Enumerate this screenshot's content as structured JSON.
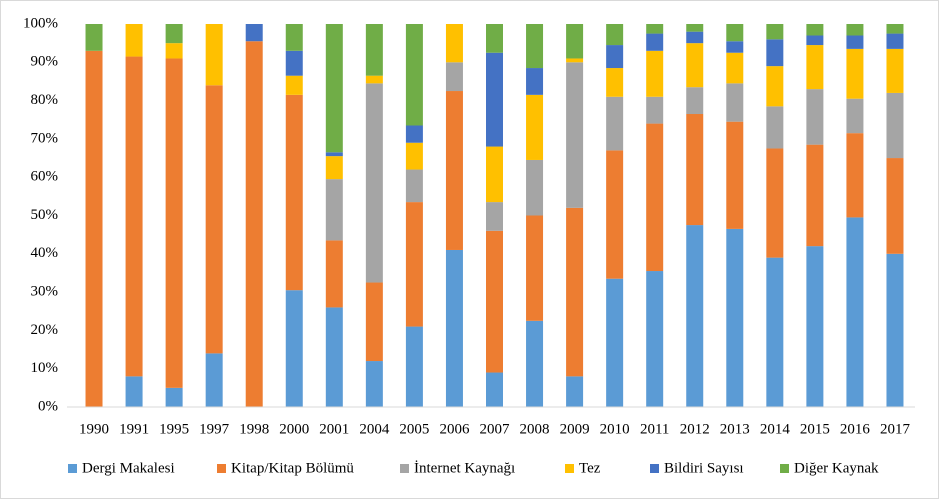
{
  "chart_data": {
    "type": "stacked_bar_100",
    "categories": [
      "1990",
      "1991",
      "1995",
      "1997",
      "1998",
      "2000",
      "2001",
      "2004",
      "2005",
      "2006",
      "2007",
      "2008",
      "2009",
      "2010",
      "2011",
      "2012",
      "2013",
      "2014",
      "2015",
      "2016",
      "2017"
    ],
    "series": [
      {
        "name": "Dergi Makalesi",
        "color": "#5b9bd5",
        "values": [
          0,
          8,
          5,
          14,
          0,
          30.5,
          26,
          12,
          21,
          41,
          9,
          22.5,
          8,
          33.5,
          35.5,
          47.5,
          46.5,
          39,
          42,
          49.5,
          40
        ]
      },
      {
        "name": "Kitap/Kitap Bölümü",
        "color": "#ed7d31",
        "values": [
          93,
          83.5,
          86,
          70,
          95.5,
          51,
          17.5,
          20.5,
          32.5,
          41.5,
          37,
          27.5,
          44,
          33.5,
          38.5,
          29,
          28,
          28.5,
          26.5,
          22,
          25
        ]
      },
      {
        "name": "İnternet Kaynağı",
        "color": "#a5a5a5",
        "values": [
          0,
          0,
          0,
          0,
          0,
          0,
          16,
          52,
          8.5,
          7.5,
          7.5,
          14.5,
          38,
          14,
          7,
          7,
          10,
          11,
          14.5,
          9,
          17
        ]
      },
      {
        "name": "Tez",
        "color": "#ffc000",
        "values": [
          0,
          8.5,
          4,
          16,
          0,
          5,
          6,
          2,
          7,
          10,
          14.5,
          17,
          1,
          7.5,
          12,
          11.5,
          8,
          10.5,
          11.5,
          13,
          11.5
        ]
      },
      {
        "name": "Bildiri Sayısı",
        "color": "#4472c4",
        "values": [
          0,
          0,
          0,
          0,
          4.5,
          6.5,
          1,
          0,
          4.5,
          0,
          24.5,
          7,
          0,
          6,
          4.5,
          3,
          3,
          7,
          2.5,
          3.5,
          4
        ]
      },
      {
        "name": "Diğer Kaynak",
        "color": "#70ad47",
        "values": [
          7,
          0,
          5,
          0,
          0,
          7,
          33.5,
          13.5,
          26.5,
          0,
          7.5,
          11.5,
          9,
          5.5,
          2.5,
          2,
          4.5,
          4,
          3,
          3,
          2.5
        ]
      }
    ],
    "ylim": [
      0,
      100
    ],
    "yticks": [
      {
        "value": 0,
        "label": "0%"
      },
      {
        "value": 10,
        "label": "10%"
      },
      {
        "value": 20,
        "label": "20%"
      },
      {
        "value": 30,
        "label": "30%"
      },
      {
        "value": 40,
        "label": "40%"
      },
      {
        "value": 50,
        "label": "50%"
      },
      {
        "value": 60,
        "label": "60%"
      },
      {
        "value": 70,
        "label": "70%"
      },
      {
        "value": 80,
        "label": "80%"
      },
      {
        "value": 90,
        "label": "90%"
      },
      {
        "value": 100,
        "label": "100%"
      }
    ],
    "legend": "bottom"
  }
}
